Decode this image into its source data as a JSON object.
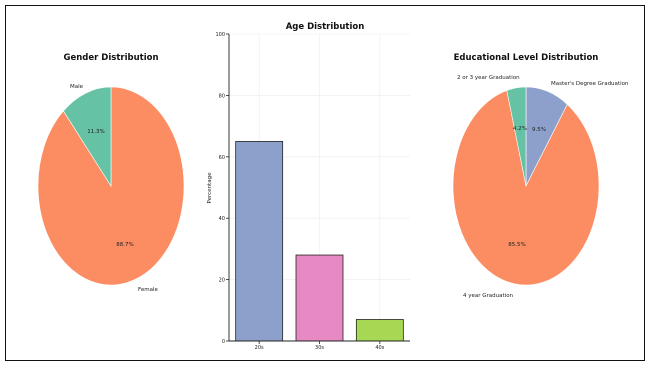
{
  "colors": {
    "female": "#FC8D62",
    "male": "#66C2A5",
    "age_20": "#8DA0CB",
    "age_30": "#E78AC3",
    "age_40": "#A6D854",
    "edu_2or3": "#66C2A5",
    "edu_masters": "#8DA0CB",
    "edu_4year": "#FC8D62",
    "grid": "#ececec",
    "axis": "#222222"
  },
  "chart_data": [
    {
      "type": "pie",
      "title": "Gender Distribution",
      "labels": [
        "Female",
        "Male"
      ],
      "values": [
        88.7,
        11.3
      ],
      "pct_labels": [
        "88.7%",
        "11.3%"
      ],
      "colors": [
        "#FC8D62",
        "#66C2A5"
      ],
      "startangle": 90,
      "direction": "clockwise"
    },
    {
      "type": "bar",
      "title": "Age Distribution",
      "categories": [
        "20s",
        "30s",
        "40s"
      ],
      "values": [
        65,
        28,
        7
      ],
      "colors": [
        "#8DA0CB",
        "#E78AC3",
        "#A6D854"
      ],
      "ylabel": "Percentage",
      "xlabel": "",
      "ylim": [
        0,
        100
      ],
      "yticks": [
        0,
        20,
        40,
        60,
        80,
        100
      ],
      "ytick_labels": [
        "0",
        "20",
        "40",
        "60",
        "80",
        "100"
      ],
      "grid": true
    },
    {
      "type": "pie",
      "title": "Educational Level Distribution",
      "labels": [
        "Master's Degree Graduation",
        "4 year Graduation",
        "2 or 3 year Graduation"
      ],
      "values": [
        9.5,
        85.5,
        4.2
      ],
      "pct_labels": [
        "9.5%",
        "85.5%",
        "4.2%"
      ],
      "colors": [
        "#8DA0CB",
        "#FC8D62",
        "#66C2A5"
      ],
      "startangle": 90,
      "direction": "clockwise"
    }
  ]
}
